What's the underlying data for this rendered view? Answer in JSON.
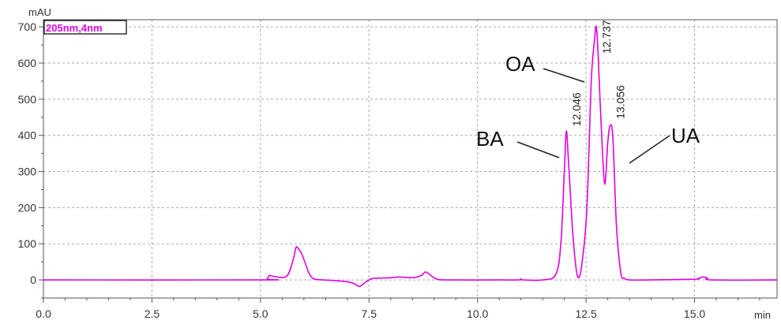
{
  "chart_data": {
    "type": "line",
    "legend": "205nm,4nm",
    "y_unit": "mAU",
    "x_unit": "min",
    "xlim": [
      0,
      16.9
    ],
    "ylim": [
      -50,
      720
    ],
    "x_ticks": [
      0.0,
      2.5,
      5.0,
      7.5,
      10.0,
      12.5,
      15.0
    ],
    "x_tick_labels": [
      "0.0",
      "2.5",
      "5.0",
      "7.5",
      "10.0",
      "12.5",
      "15.0"
    ],
    "y_ticks": [
      0,
      100,
      200,
      300,
      400,
      500,
      600,
      700
    ],
    "y_tick_labels": [
      "0",
      "100",
      "200",
      "300",
      "400",
      "500",
      "600",
      "700"
    ],
    "grid": true,
    "series": [
      {
        "color": "#e000e0",
        "x": [
          0.0,
          5.0,
          5.15,
          5.2,
          5.3,
          5.6,
          5.75,
          5.82,
          5.88,
          5.95,
          6.05,
          6.12,
          6.2,
          6.3,
          6.6,
          7.0,
          7.15,
          7.28,
          7.4,
          7.55,
          7.7,
          8.0,
          8.2,
          8.5,
          8.7,
          8.8,
          8.9,
          9.05,
          9.3,
          10.5,
          10.95,
          11.0,
          11.05,
          11.5,
          11.8,
          11.92,
          12.0,
          12.046,
          12.1,
          12.2,
          12.3,
          12.4,
          12.52,
          12.62,
          12.7,
          12.737,
          12.78,
          12.86,
          12.93,
          13.0,
          13.056,
          13.12,
          13.2,
          13.3,
          13.38,
          13.5,
          14.0,
          15.0,
          15.1,
          15.2,
          15.3,
          15.4,
          16.9
        ],
        "values": [
          0,
          0,
          2,
          12,
          10,
          10,
          55,
          90,
          85,
          72,
          40,
          18,
          5,
          1,
          -1,
          -5,
          -10,
          -18,
          -8,
          3,
          5,
          6,
          8,
          6,
          12,
          22,
          15,
          3,
          0,
          0,
          0,
          3,
          0,
          0,
          15,
          100,
          300,
          412,
          320,
          120,
          12,
          40,
          200,
          550,
          670,
          700,
          620,
          400,
          265,
          380,
          428,
          390,
          150,
          20,
          5,
          0,
          0,
          2,
          5,
          8,
          5,
          0,
          0
        ]
      }
    ],
    "peak_labels": [
      {
        "x": 12.046,
        "text": "12.046"
      },
      {
        "x": 12.737,
        "text": "12.737"
      },
      {
        "x": 13.056,
        "text": "13.056"
      }
    ],
    "annotations": [
      {
        "text": "OA",
        "x": 12.737
      },
      {
        "text": "BA",
        "x": 12.046
      },
      {
        "text": "UA",
        "x": 13.056
      }
    ]
  }
}
